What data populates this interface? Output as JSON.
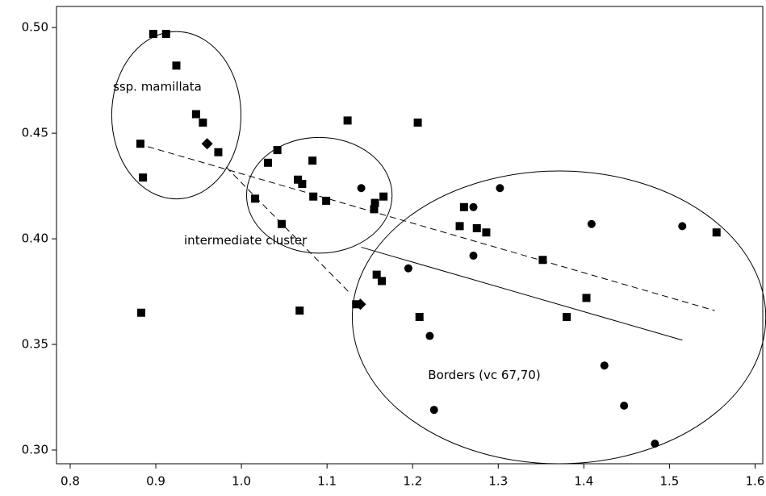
{
  "chart_data": {
    "type": "scatter",
    "xlim": [
      0.784,
      1.609
    ],
    "ylim": [
      0.2935,
      0.51
    ],
    "xticks": [
      0.8,
      0.9,
      {
        "value": 1,
        "label": "1.0"
      },
      1.1,
      1.2,
      1.3,
      1.4,
      1.5,
      1.6
    ],
    "yticks": [
      {
        "value": 0.3,
        "label": "0.30"
      },
      0.35,
      {
        "value": 0.4,
        "label": "0.40"
      },
      0.45,
      {
        "value": 0.5,
        "label": "0.50"
      }
    ],
    "series": [
      {
        "marker": "square",
        "color": "#000000",
        "x": [
          0.897,
          0.912,
          0.924,
          0.947,
          0.955,
          0.973,
          0.882,
          0.885,
          0.883,
          1.031,
          1.042,
          1.083,
          1.066,
          1.071,
          1.084,
          1.099,
          1.016,
          1.047,
          1.068,
          1.124,
          1.206,
          1.156,
          1.166,
          1.155,
          1.158,
          1.164,
          1.208,
          1.26,
          1.255,
          1.275,
          1.286,
          1.352,
          1.403,
          1.38,
          1.555,
          1.134
        ],
        "values": [
          0.497,
          0.497,
          0.482,
          0.459,
          0.455,
          0.441,
          0.445,
          0.429,
          0.365,
          0.436,
          0.442,
          0.437,
          0.428,
          0.426,
          0.42,
          0.418,
          0.419,
          0.407,
          0.366,
          0.456,
          0.455,
          0.417,
          0.42,
          0.414,
          0.383,
          0.38,
          0.363,
          0.415,
          0.406,
          0.405,
          0.403,
          0.39,
          0.372,
          0.363,
          0.403,
          0.369
        ]
      },
      {
        "marker": "circle",
        "color": "#000000",
        "x": [
          1.14,
          1.271,
          1.302,
          1.271,
          1.195,
          1.22,
          1.225,
          1.409,
          1.515,
          1.424,
          1.447,
          1.483
        ],
        "values": [
          0.424,
          0.415,
          0.424,
          0.392,
          0.386,
          0.354,
          0.319,
          0.407,
          0.406,
          0.34,
          0.321,
          0.303
        ]
      },
      {
        "marker": "diamond",
        "color": "#000000",
        "x": [
          0.96,
          1.139
        ],
        "values": [
          0.445,
          0.369
        ]
      }
    ],
    "lines": [
      {
        "style": "dashed",
        "x": [
          0.879,
          1.553
        ],
        "y": [
          0.445,
          0.366
        ]
      },
      {
        "style": "solid",
        "x": [
          1.14,
          1.515
        ],
        "y": [
          0.396,
          0.352
        ]
      },
      {
        "style": "dashed",
        "x": [
          0.982,
          1.125
        ],
        "y": [
          0.434,
          0.375
        ]
      }
    ],
    "ellipses": [
      {
        "label": "ssp. mamillata",
        "cx": 0.924,
        "cy": 0.4585,
        "rx": 0.0755,
        "ry": 0.0396,
        "label_x": 0.85,
        "label_y": 0.4718
      },
      {
        "label": "intermediate cluster",
        "cx": 1.091,
        "cy": 0.4206,
        "rx": 0.085,
        "ry": 0.0274,
        "label_x": 0.933,
        "label_y": 0.399
      },
      {
        "label": "Borders (vc 67,70)",
        "cx": 1.371,
        "cy": 0.3628,
        "rx": 0.2415,
        "ry": 0.0693,
        "label_x": 1.218,
        "label_y": 0.3354
      }
    ]
  }
}
